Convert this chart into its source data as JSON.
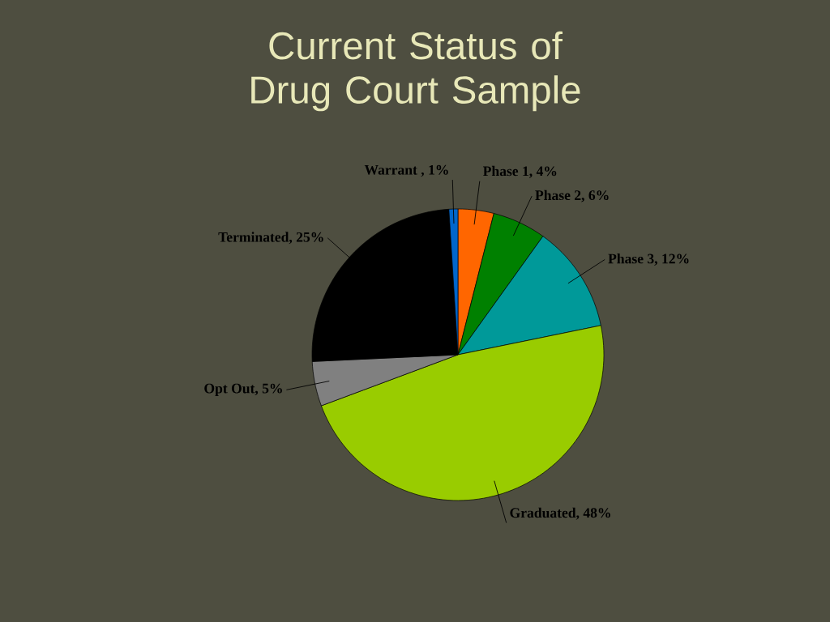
{
  "chart_data": {
    "type": "pie",
    "title": "Current Status of Drug Court Sample",
    "categories": [
      "Phase 1, 4%",
      "Phase 2, 6%",
      "Phase 3, 12%",
      "Graduated, 48%",
      "Opt Out, 5%",
      "Terminated, 25%",
      "Warrant , 1%"
    ],
    "values": [
      4,
      6,
      12,
      48,
      5,
      25,
      1
    ],
    "colors": [
      "#ff6600",
      "#008000",
      "#009999",
      "#99cc00",
      "#808080",
      "#000000",
      "#0066cc"
    ]
  }
}
